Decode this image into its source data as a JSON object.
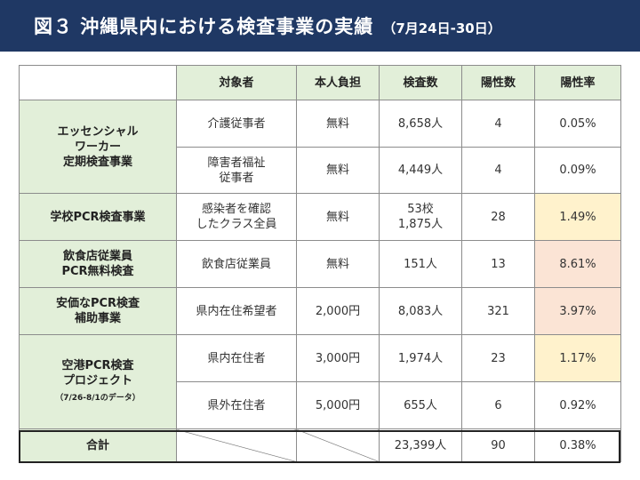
{
  "header": {
    "title": "図３ 沖縄県内における検査事業の実績",
    "period": "（7月24日-30日）"
  },
  "table": {
    "columns": [
      "対象者",
      "本人負担",
      "検査数",
      "陽性数",
      "陽性率"
    ],
    "categories": {
      "essential": [
        "エッセンシャル",
        "ワーカー",
        "定期検査事業"
      ],
      "school": "学校PCR検査事業",
      "restaurant": [
        "飲食店従業員",
        "PCR無料検査"
      ],
      "lowcost": [
        "安価なPCR検査",
        "補助事業"
      ],
      "airport": [
        "空港PCR検査",
        "プロジェクト"
      ],
      "airport_note": "（7/26-8/1のデータ）"
    },
    "rows": [
      {
        "target": [
          "介護従事者"
        ],
        "cost": "無料",
        "tests": [
          "8,658人"
        ],
        "positives": "4",
        "rate": "0.05%"
      },
      {
        "target": [
          "障害者福祉",
          "従事者"
        ],
        "cost": "無料",
        "tests": [
          "4,449人"
        ],
        "positives": "4",
        "rate": "0.09%"
      },
      {
        "target": [
          "感染者を確認",
          "したクラス全員"
        ],
        "cost": "無料",
        "tests": [
          "53校",
          "1,875人"
        ],
        "positives": "28",
        "rate": "1.49%"
      },
      {
        "target": [
          "飲食店従業員"
        ],
        "cost": "無料",
        "tests": [
          "151人"
        ],
        "positives": "13",
        "rate": "8.61%"
      },
      {
        "target": [
          "県内在住希望者"
        ],
        "cost": "2,000円",
        "tests": [
          "8,083人"
        ],
        "positives": "321",
        "rate": "3.97%"
      },
      {
        "target": [
          "県内在住者"
        ],
        "cost": "3,000円",
        "tests": [
          "1,974人"
        ],
        "positives": "23",
        "rate": "1.17%"
      },
      {
        "target": [
          "県外在住者"
        ],
        "cost": "5,000円",
        "tests": [
          "655人"
        ],
        "positives": "6",
        "rate": "0.92%"
      }
    ],
    "total": {
      "label": "合計",
      "tests": "23,399人",
      "positives": "90",
      "rate": "0.38%"
    },
    "highlight_colors": {
      "yellow": "#fff2cc",
      "pink": "#fbe4d5",
      "green": "#e2efd9",
      "banner": "#1f3864"
    }
  }
}
